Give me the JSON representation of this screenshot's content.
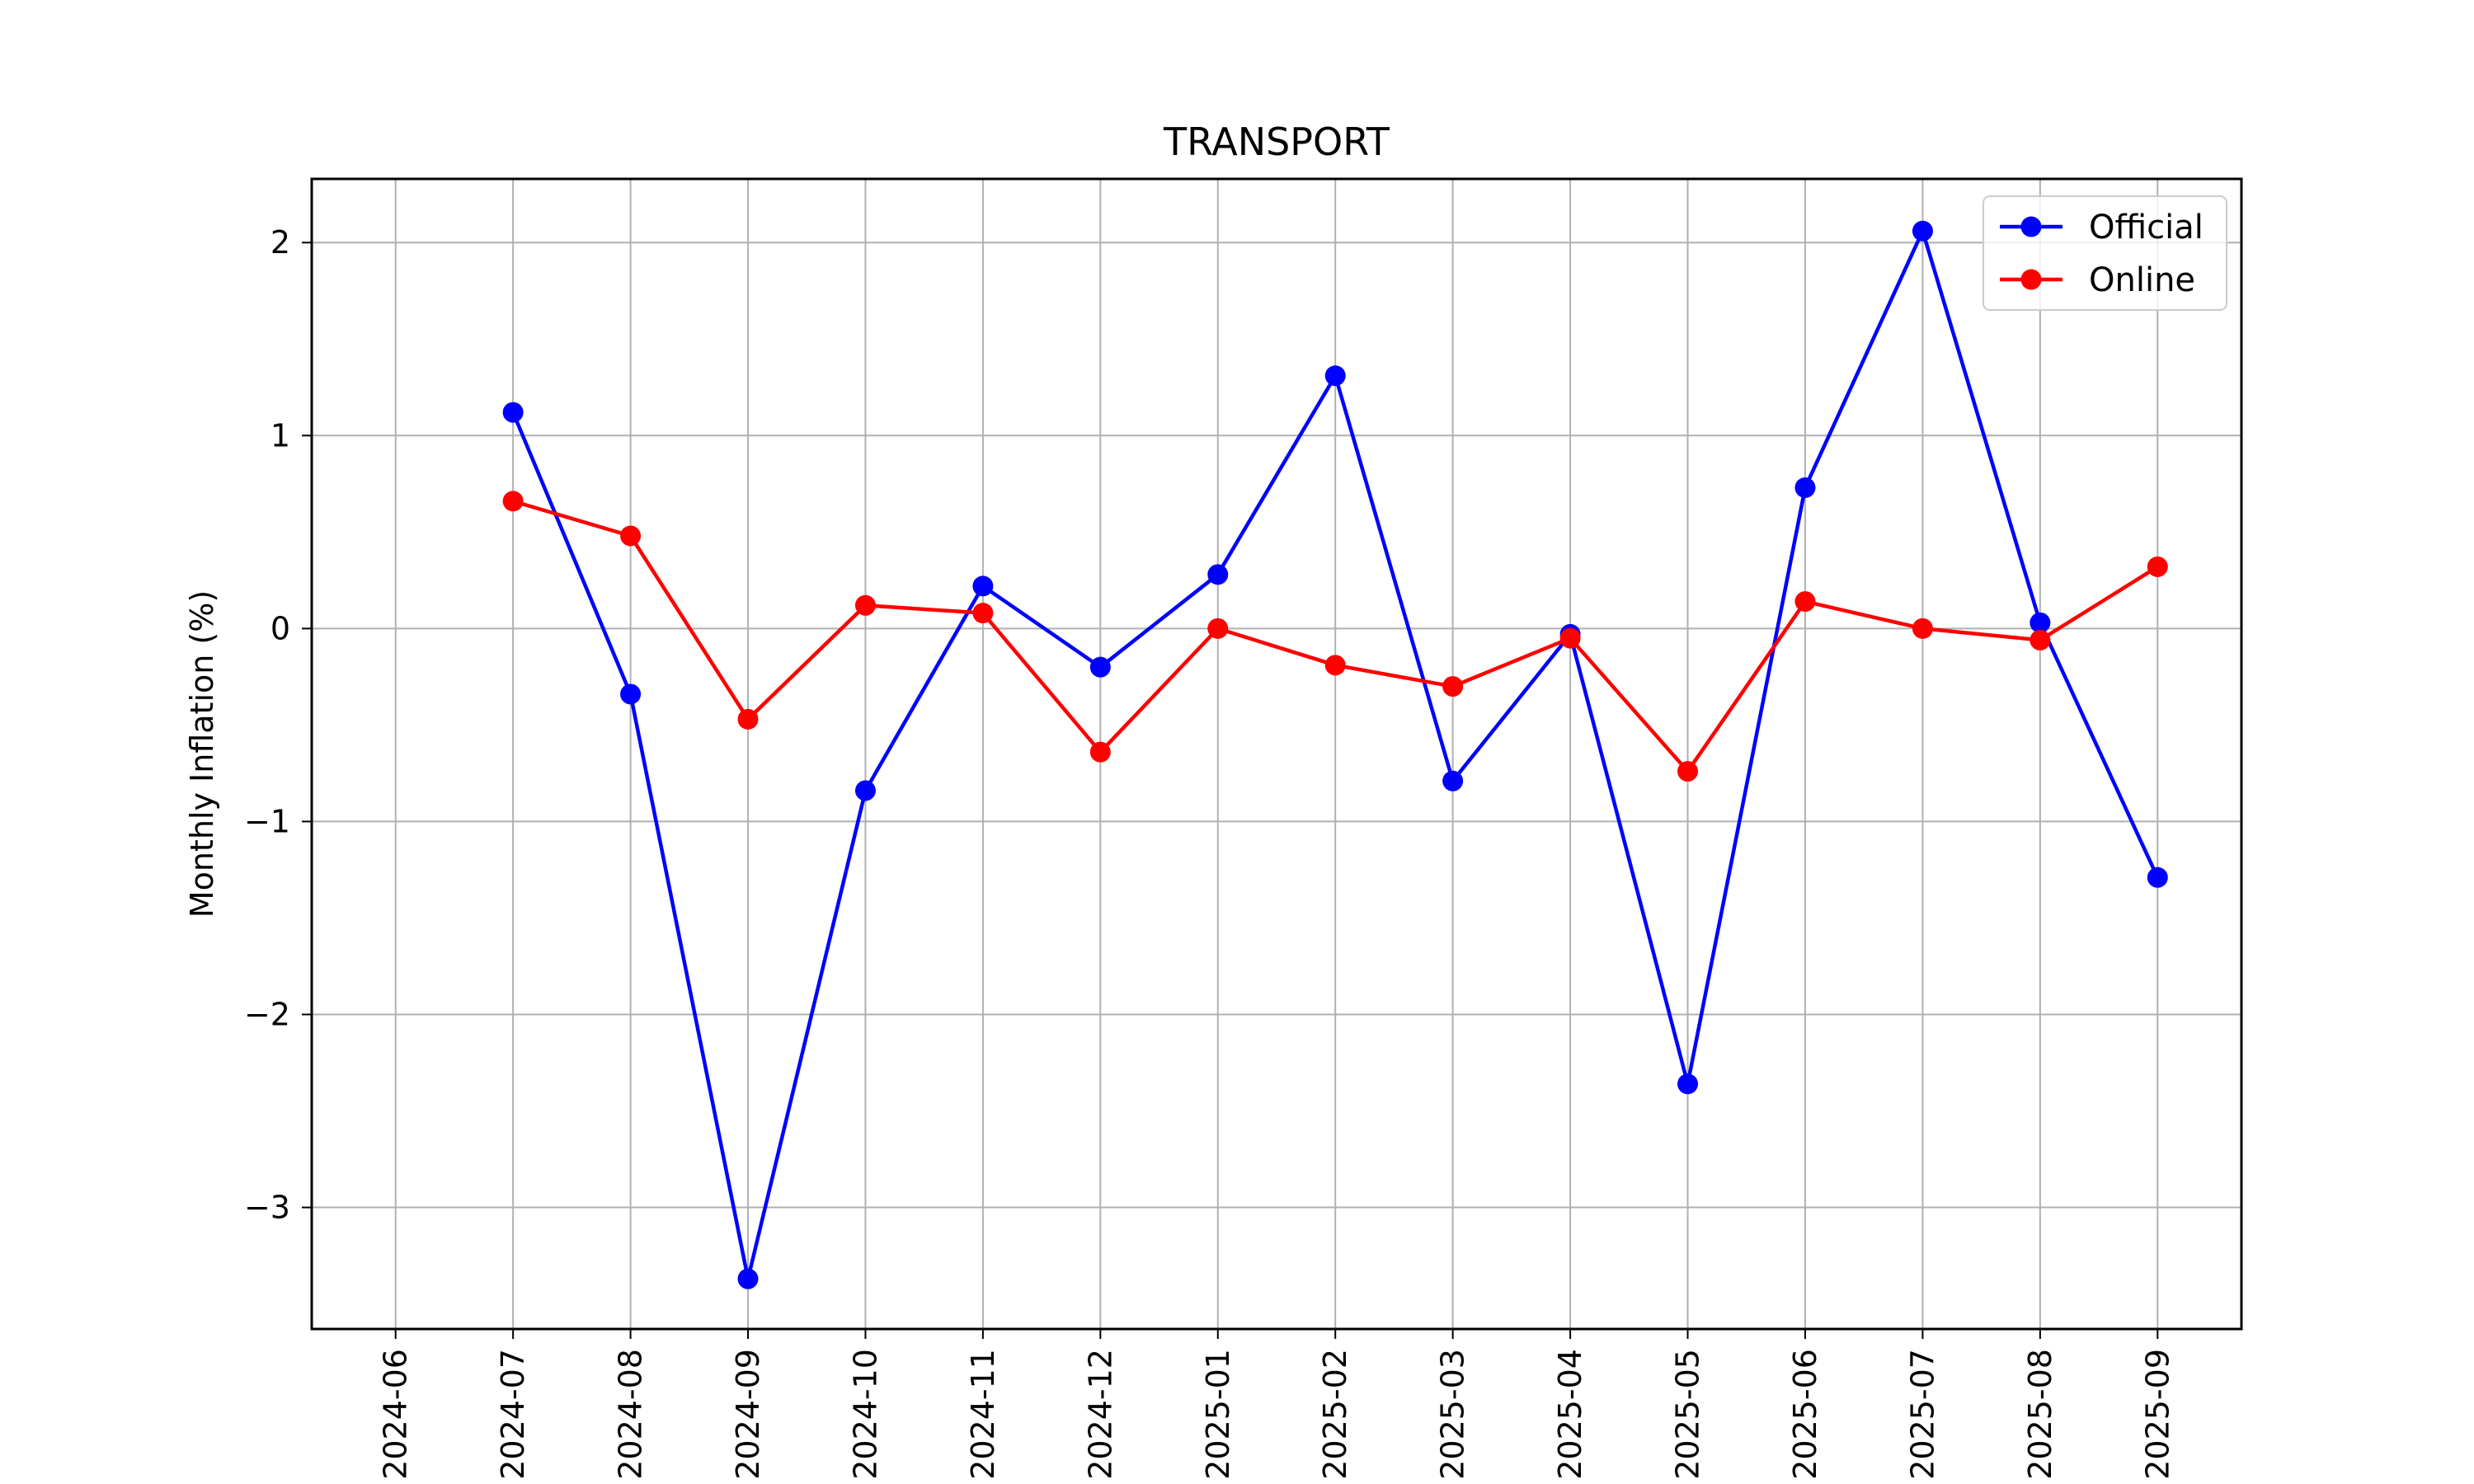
{
  "chart_data": {
    "type": "line",
    "title": "TRANSPORT",
    "xlabel": "",
    "ylabel": "Monthly Inflation (%)",
    "x_ticks": [
      "2024-06",
      "2024-07",
      "2024-08",
      "2024-09",
      "2024-10",
      "2024-11",
      "2024-12",
      "2025-01",
      "2025-02",
      "2025-03",
      "2025-04",
      "2025-05",
      "2025-06",
      "2025-07",
      "2025-08",
      "2025-09"
    ],
    "x": [
      "2024-07",
      "2024-08",
      "2024-09",
      "2024-10",
      "2024-11",
      "2024-12",
      "2025-01",
      "2025-02",
      "2025-03",
      "2025-04",
      "2025-05",
      "2025-06",
      "2025-07",
      "2025-08",
      "2025-09"
    ],
    "xlim": [
      "2024-06",
      "2025-09"
    ],
    "ylim": [
      -3.63,
      2.33
    ],
    "y_ticks": [
      2,
      1,
      0,
      -1,
      -2,
      -3
    ],
    "y_tick_labels": [
      "2",
      "1",
      "0",
      "−1",
      "−2",
      "−3"
    ],
    "grid": true,
    "legend_position": "top-right",
    "series": [
      {
        "name": "Official",
        "color": "#0000ff",
        "values": [
          1.12,
          -0.34,
          -3.37,
          -0.84,
          0.22,
          -0.2,
          0.28,
          1.31,
          -0.79,
          -0.03,
          -2.36,
          0.73,
          2.06,
          0.03,
          -1.29
        ]
      },
      {
        "name": "Online",
        "color": "#ff0000",
        "values": [
          0.66,
          0.48,
          -0.47,
          0.12,
          0.08,
          -0.64,
          0.0,
          -0.19,
          -0.3,
          -0.05,
          -0.74,
          0.14,
          0.0,
          -0.06,
          0.32
        ]
      }
    ]
  }
}
